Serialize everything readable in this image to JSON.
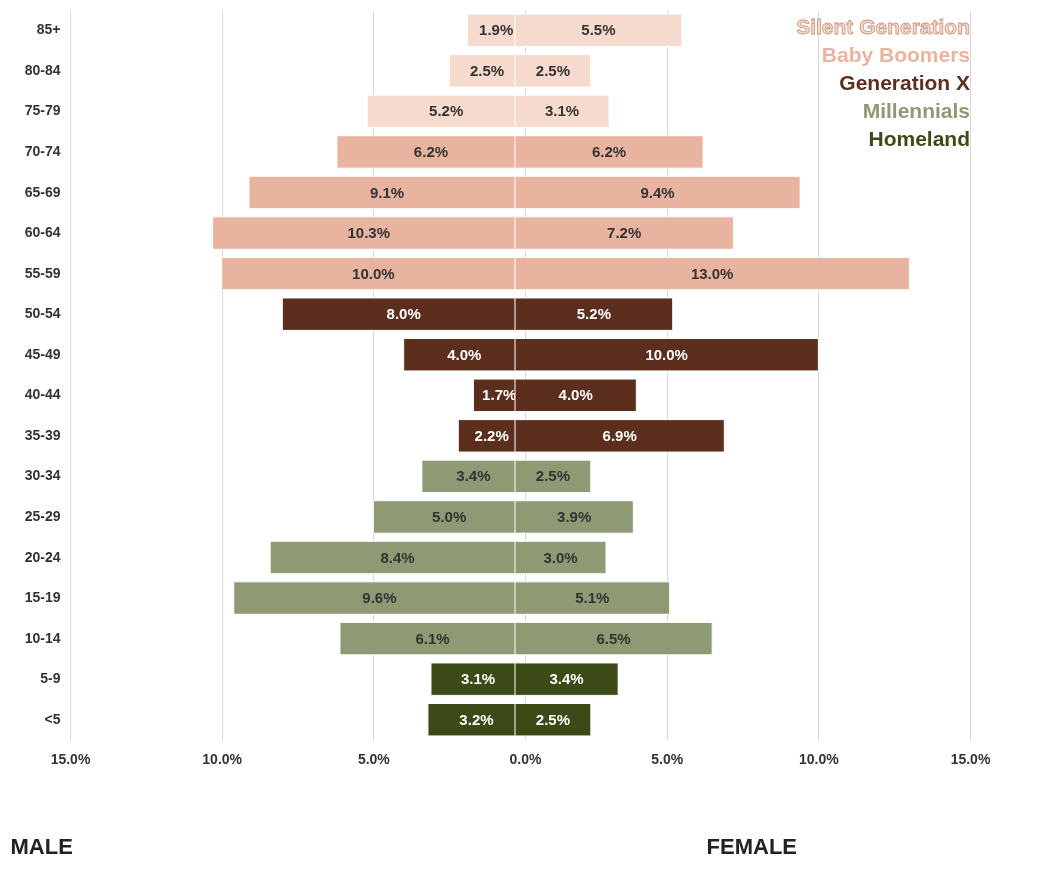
{
  "chart_data": [
    {
      "type": "bar",
      "orientation": "horizontal",
      "xlabel": "MALE",
      "categories": [
        "85+",
        "80-84",
        "75-79",
        "70-74",
        "65-69",
        "60-64",
        "55-59",
        "50-54",
        "45-49",
        "40-44",
        "35-39",
        "30-34",
        "25-29",
        "20-24",
        "15-19",
        "10-14",
        "5-9",
        "<5"
      ],
      "series": [
        {
          "color": "#f5dacd",
          "values": [
            1.9,
            2.5,
            5.2,
            null,
            null,
            null,
            null,
            null,
            null,
            null,
            null,
            null,
            null,
            null,
            null,
            null,
            null,
            null
          ],
          "value_labels": [
            "1.9%",
            "2.5%",
            "5.2%",
            null,
            null,
            null,
            null,
            null,
            null,
            null,
            null,
            null,
            null,
            null,
            null,
            null,
            null,
            null
          ]
        },
        {
          "color": "#e9b49f",
          "values": [
            null,
            null,
            null,
            6.2,
            9.1,
            10.3,
            10.0,
            null,
            null,
            null,
            null,
            null,
            null,
            null,
            null,
            null,
            null,
            null
          ],
          "value_labels": [
            null,
            null,
            null,
            "6.2%",
            "9.1%",
            "10.3%",
            "10.0%",
            null,
            null,
            null,
            null,
            null,
            null,
            null,
            null,
            null,
            null,
            null
          ]
        },
        {
          "color": "#5b2e1d",
          "values": [
            null,
            null,
            null,
            null,
            null,
            null,
            null,
            8.0,
            4.0,
            1.7,
            2.2,
            null,
            null,
            null,
            null,
            null,
            null,
            null
          ],
          "value_labels": [
            null,
            null,
            null,
            null,
            null,
            null,
            null,
            "8.0%",
            "4.0%",
            "1.7%",
            "2.2%",
            null,
            null,
            null,
            null,
            null,
            null,
            null
          ]
        },
        {
          "color": "#8e9a73",
          "values": [
            null,
            null,
            null,
            null,
            null,
            null,
            null,
            null,
            null,
            null,
            null,
            3.4,
            5.0,
            8.4,
            9.6,
            6.1,
            null,
            null
          ],
          "value_labels": [
            null,
            null,
            null,
            null,
            null,
            null,
            null,
            null,
            null,
            null,
            null,
            "3.4%",
            "5.0%",
            "8.4%",
            "9.6%",
            "6.1%",
            null,
            null
          ]
        },
        {
          "color": "#3c4a18",
          "values": [
            null,
            null,
            null,
            null,
            null,
            null,
            null,
            null,
            null,
            null,
            null,
            null,
            null,
            null,
            null,
            null,
            3.1,
            3.2
          ],
          "value_labels": [
            null,
            null,
            null,
            null,
            null,
            null,
            null,
            null,
            null,
            null,
            null,
            null,
            null,
            null,
            null,
            null,
            "3.1%",
            "3.2%"
          ]
        }
      ],
      "xlim": [
        15,
        0
      ],
      "xticks": [
        {
          "value": 15,
          "label": "15.0%"
        },
        {
          "value": 10,
          "label": "10.0%"
        },
        {
          "value": 5,
          "label": "5.0%"
        },
        {
          "value": 0,
          "label": "0.0%"
        }
      ],
      "grid": "x"
    },
    {
      "type": "bar",
      "orientation": "horizontal",
      "xlabel": "FEMALE",
      "tick_labels": "x",
      "categories": [
        null,
        null,
        null,
        null,
        null,
        null,
        null,
        null,
        null,
        null,
        null,
        null,
        null,
        null,
        null,
        null,
        null,
        null
      ],
      "series": [
        {
          "name": "Silent Generation",
          "color": "#f5dacd",
          "values": [
            5.5,
            2.5,
            3.1,
            null,
            null,
            null,
            null,
            null,
            null,
            null,
            null,
            null,
            null,
            null,
            null,
            null,
            null,
            null
          ],
          "value_labels": [
            "5.5%",
            "2.5%",
            "3.1%",
            null,
            null,
            null,
            null,
            null,
            null,
            null,
            null,
            null,
            null,
            null,
            null,
            null,
            null,
            null
          ]
        },
        {
          "name": "Baby Boomers",
          "color": "#e9b49f",
          "values": [
            null,
            null,
            null,
            6.2,
            9.4,
            7.2,
            13.0,
            null,
            null,
            null,
            null,
            null,
            null,
            null,
            null,
            null,
            null,
            null
          ],
          "value_labels": [
            null,
            null,
            null,
            "6.2%",
            "9.4%",
            "7.2%",
            "13.0%",
            null,
            null,
            null,
            null,
            null,
            null,
            null,
            null,
            null,
            null,
            null
          ]
        },
        {
          "name": "Generation X",
          "color": "#5b2e1d",
          "values": [
            null,
            null,
            null,
            null,
            null,
            null,
            null,
            5.2,
            10.0,
            4.0,
            6.9,
            null,
            null,
            null,
            null,
            null,
            null,
            null
          ],
          "value_labels": [
            null,
            null,
            null,
            null,
            null,
            null,
            null,
            "5.2%",
            "10.0%",
            "4.0%",
            "6.9%",
            null,
            null,
            null,
            null,
            null,
            null,
            null
          ]
        },
        {
          "name": "Millennials",
          "color": "#8e9a73",
          "values": [
            null,
            null,
            null,
            null,
            null,
            null,
            null,
            null,
            null,
            null,
            null,
            2.5,
            3.9,
            3.0,
            5.1,
            6.5,
            null,
            null
          ],
          "value_labels": [
            null,
            null,
            null,
            null,
            null,
            null,
            null,
            null,
            null,
            null,
            null,
            "2.5%",
            "3.9%",
            "3.0%",
            "5.1%",
            "6.5%",
            null,
            null
          ]
        },
        {
          "name": "Homeland",
          "color": "#3c4a18",
          "values": [
            null,
            null,
            null,
            null,
            null,
            null,
            null,
            null,
            null,
            null,
            null,
            null,
            null,
            null,
            null,
            null,
            3.4,
            2.5
          ],
          "value_labels": [
            null,
            null,
            null,
            null,
            null,
            null,
            null,
            null,
            null,
            null,
            null,
            null,
            null,
            null,
            null,
            null,
            "3.4%",
            "2.5%"
          ]
        }
      ],
      "xlim": [
        0,
        15
      ],
      "xticks": [
        {
          "value": 5,
          "label": "5.0%"
        },
        {
          "value": 10,
          "label": "10.0%"
        },
        {
          "value": 15,
          "label": "15.0%"
        }
      ],
      "grid": "x",
      "legend": "top right"
    }
  ]
}
